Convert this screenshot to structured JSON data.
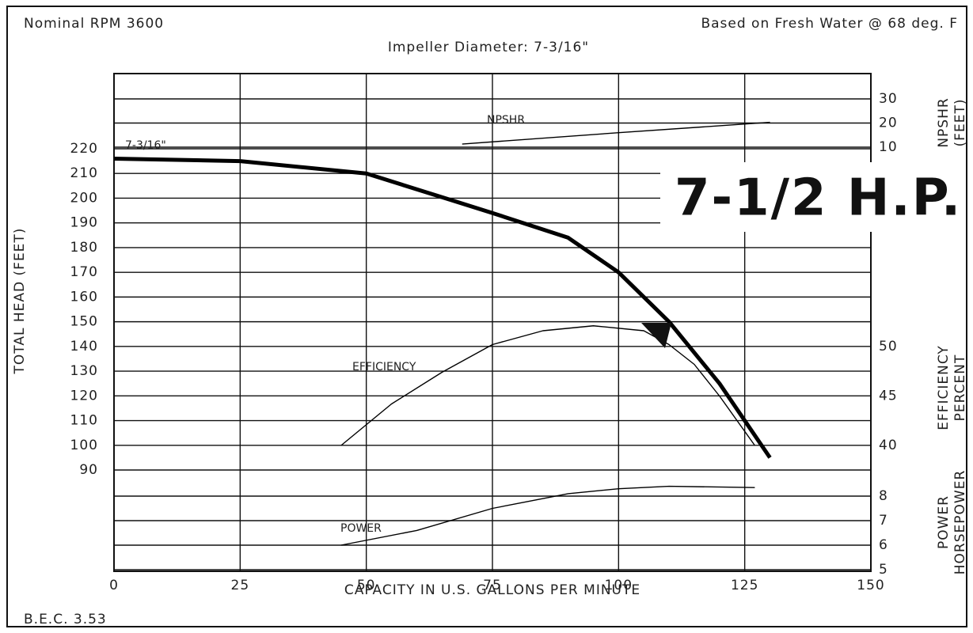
{
  "chart_data": {
    "type": "line",
    "title": "Impeller Diameter: 7-3/16\"",
    "top_left": "Nominal RPM 3600",
    "top_right": "Based on Fresh Water @ 68 deg. F",
    "badge": "7-1/2 H.P.",
    "footer": "B.E.C. 3.53",
    "x_label": "CAPACITY IN U.S. GALLONS PER MINUTE",
    "y_label": "TOTAL HEAD (FEET)",
    "npshr_label": [
      "NPSHR",
      "(FEET)"
    ],
    "efficiency_label": [
      "EFFICIENCY",
      "PERCENT"
    ],
    "power_label": [
      "POWER",
      "HORSEPOWER"
    ],
    "xlim": [
      0,
      150
    ],
    "xticks": [
      0,
      25,
      50,
      75,
      100,
      125,
      150
    ],
    "ylim": [
      90,
      220
    ],
    "yticks": [
      220,
      210,
      200,
      190,
      180,
      170,
      160,
      150,
      140,
      130,
      120,
      110,
      100,
      90
    ],
    "npshr_lim": [
      10,
      30
    ],
    "npshr_ticks": [
      30,
      20,
      10
    ],
    "efficiency_lim": [
      40,
      50
    ],
    "efficiency_ticks": [
      50,
      45,
      40
    ],
    "power_lim": [
      5,
      8
    ],
    "power_ticks": [
      8,
      7,
      6,
      5
    ],
    "grid": true,
    "series": [
      {
        "name": "7-3/16\"",
        "axis": "y",
        "color": "#000000",
        "x": [
          0,
          25,
          50,
          75,
          90,
          100,
          110,
          120,
          125,
          130
        ],
        "values": [
          216,
          215,
          210,
          194,
          184,
          170,
          150,
          125,
          110,
          95
        ]
      },
      {
        "name": "NPSHR",
        "axis": "npshr",
        "color": "#000000",
        "x": [
          69,
          100,
          130
        ],
        "values": [
          11.3,
          16,
          20.3
        ]
      },
      {
        "name": "EFFICIENCY",
        "axis": "efficiency",
        "color": "#000000",
        "x": [
          45,
          55,
          65,
          75,
          85,
          95,
          105,
          110,
          115,
          120,
          127
        ],
        "values": [
          40,
          44.2,
          47.4,
          50.2,
          51.6,
          52.1,
          51.6,
          50.2,
          48.2,
          45,
          40
        ]
      },
      {
        "name": "POWER",
        "axis": "power",
        "color": "#000000",
        "x": [
          45,
          60,
          75,
          90,
          100,
          110,
          127
        ],
        "values": [
          6,
          6.6,
          7.5,
          8.1,
          8.3,
          8.4,
          8.35
        ]
      }
    ]
  }
}
